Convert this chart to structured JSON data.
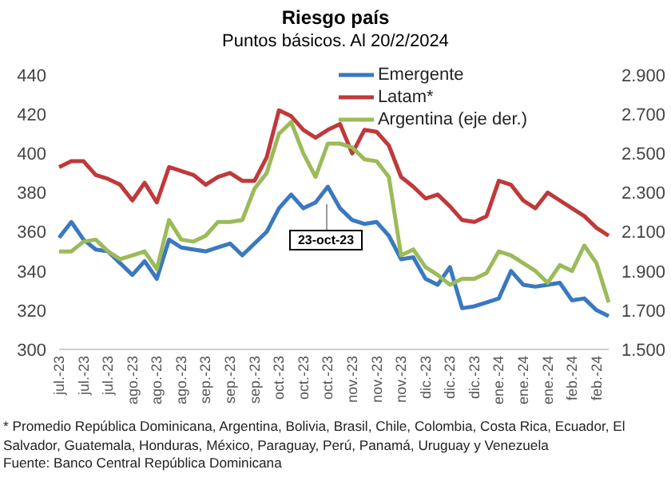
{
  "chart_data": {
    "type": "line",
    "title": "Riesgo país",
    "subtitle": "Puntos básicos. Al 20/2/2024",
    "categories": [
      "jul.-23",
      null,
      "jul.-23",
      null,
      "jul.-23",
      null,
      "ago.-23",
      null,
      "ago.-23",
      null,
      "ago.-23",
      null,
      "sep.-23",
      null,
      "sep.-23",
      null,
      "sep.-23",
      null,
      "oct.-23",
      null,
      "oct.-23",
      null,
      "oct.-23",
      null,
      "nov.-23",
      null,
      "nov.-23",
      null,
      "nov.-23",
      null,
      "dic.-23",
      null,
      "dic.-23",
      null,
      "dic.-23",
      null,
      "ene.-24",
      null,
      "ene.-24",
      null,
      "ene.-24",
      null,
      "feb.-24",
      null,
      "feb.-24",
      null
    ],
    "series": [
      {
        "name": "Emergente",
        "color": "#3a78c0",
        "values": [
          357,
          365,
          356,
          351,
          350,
          344,
          338,
          345,
          336,
          356,
          352,
          351,
          350,
          352,
          354,
          348,
          354,
          360,
          372,
          379,
          372,
          375,
          383,
          372,
          366,
          364,
          365,
          358,
          346,
          347,
          336,
          333,
          342,
          321,
          322,
          324,
          326,
          340,
          333,
          332,
          333,
          334,
          325,
          326,
          320,
          317
        ]
      },
      {
        "name": "Latam*",
        "color": "#c0393a",
        "values": [
          393,
          396,
          396,
          389,
          387,
          384,
          376,
          385,
          375,
          393,
          391,
          389,
          384,
          388,
          390,
          386,
          386,
          398,
          422,
          419,
          412,
          408,
          412,
          415,
          400,
          412,
          411,
          404,
          388,
          383,
          377,
          379,
          373,
          366,
          365,
          368,
          386,
          384,
          376,
          372,
          380,
          376,
          372,
          368,
          362,
          358
        ]
      },
      {
        "name": "Argentina (eje der.)",
        "color": "#9bbb59",
        "axis": "y2",
        "values": [
          2000,
          2000,
          2050,
          2060,
          2000,
          1960,
          1980,
          2000,
          1910,
          2160,
          2060,
          2050,
          2080,
          2150,
          2150,
          2160,
          2320,
          2400,
          2600,
          2660,
          2500,
          2380,
          2550,
          2550,
          2530,
          2470,
          2460,
          2380,
          1980,
          2010,
          1920,
          1880,
          1830,
          1860,
          1860,
          1890,
          2000,
          1980,
          1940,
          1900,
          1840,
          1930,
          1900,
          2030,
          1940,
          1740
        ]
      }
    ],
    "ylim": [
      300,
      440
    ],
    "yticks": [
      300,
      320,
      340,
      360,
      380,
      400,
      420,
      440
    ],
    "y2lim": [
      1500,
      2900
    ],
    "y2ticks": [
      {
        "value": 1500,
        "label": "1.500"
      },
      {
        "value": 1700,
        "label": "1.700"
      },
      {
        "value": 1900,
        "label": "1.900"
      },
      {
        "value": 2100,
        "label": "2.100"
      },
      {
        "value": 2300,
        "label": "2.300"
      },
      {
        "value": 2500,
        "label": "2.500"
      },
      {
        "value": 2700,
        "label": "2.700"
      },
      {
        "value": 2900,
        "label": "2.900"
      }
    ],
    "legend": "top right",
    "marker": "none",
    "line_style": "solid",
    "annotations": [
      "23-oct-23",
      "* Promedio República Dominicana, Argentina, Bolivia, Brasil, Chile, Colombia, Costa Rica, Ecuador, El Salvador, Guatemala, Honduras, México, Paraguay, Perú, Panamá, Uruguay y Venezuela",
      "Fuente: Banco Central República Dominicana"
    ]
  }
}
